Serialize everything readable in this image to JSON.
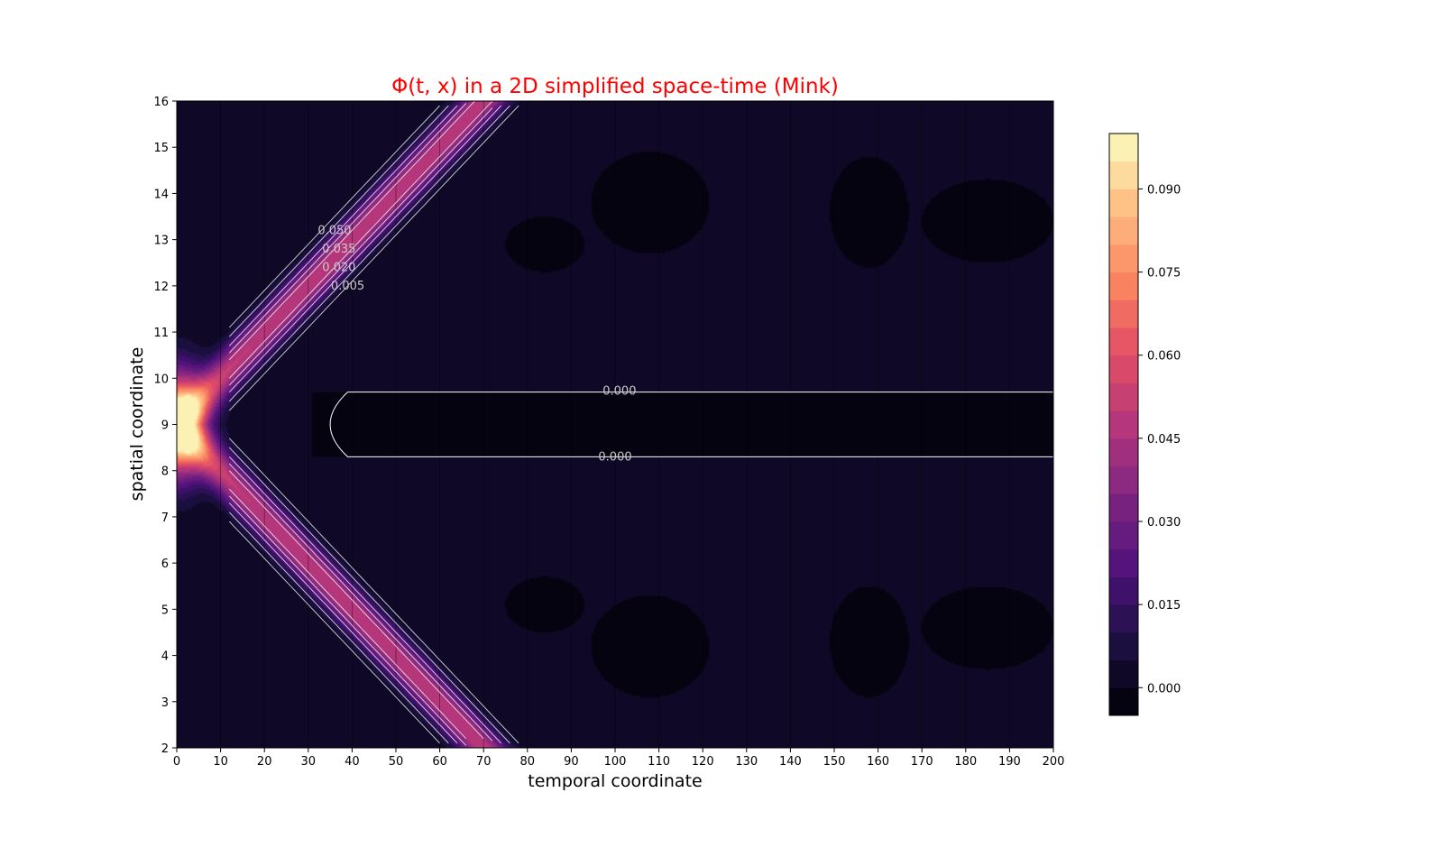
{
  "chart_data": {
    "type": "heatmap",
    "title": "Φ(t, x) in a 2D simplified space-time (Mink)",
    "title_color": "#ff0000",
    "xlabel": "temporal coordinate",
    "ylabel": "spatial coordinate",
    "xlim": [
      0,
      200
    ],
    "ylim": [
      2,
      16
    ],
    "x_ticks": [
      "0",
      "10",
      "20",
      "30",
      "40",
      "50",
      "60",
      "70",
      "80",
      "90",
      "100",
      "110",
      "120",
      "130",
      "140",
      "150",
      "160",
      "170",
      "180",
      "190",
      "200"
    ],
    "y_ticks": [
      "2",
      "3",
      "4",
      "5",
      "6",
      "7",
      "8",
      "9",
      "10",
      "11",
      "12",
      "13",
      "14",
      "15",
      "16"
    ],
    "colormap": "magma",
    "colorbar": {
      "range": [
        -0.005,
        0.1
      ],
      "levels_step": 0.005,
      "tick_labels": [
        "0.000",
        "0.015",
        "0.030",
        "0.045",
        "0.060",
        "0.075",
        "0.090"
      ],
      "tick_values": [
        0.0,
        0.015,
        0.03,
        0.045,
        0.06,
        0.075,
        0.09
      ]
    },
    "contour_labels": [
      {
        "text": "0.050",
        "t": 36,
        "x": 13.2
      },
      {
        "text": "0.035",
        "t": 37,
        "x": 12.8
      },
      {
        "text": "0.020",
        "t": 37,
        "x": 12.4
      },
      {
        "text": "0.005",
        "t": 39,
        "x": 12.0
      },
      {
        "text": "0.000",
        "t": 101,
        "x": 9.72
      },
      {
        "text": "0.000",
        "t": 100,
        "x": 8.3
      }
    ],
    "field": {
      "description_free_params": true,
      "pulse_center": [
        0,
        9
      ],
      "peak_value": 0.1,
      "wave_speed": 1.0,
      "negative_band": {
        "x_range": [
          8.3,
          9.7
        ],
        "t_start": 31
      }
    },
    "grid": false
  }
}
